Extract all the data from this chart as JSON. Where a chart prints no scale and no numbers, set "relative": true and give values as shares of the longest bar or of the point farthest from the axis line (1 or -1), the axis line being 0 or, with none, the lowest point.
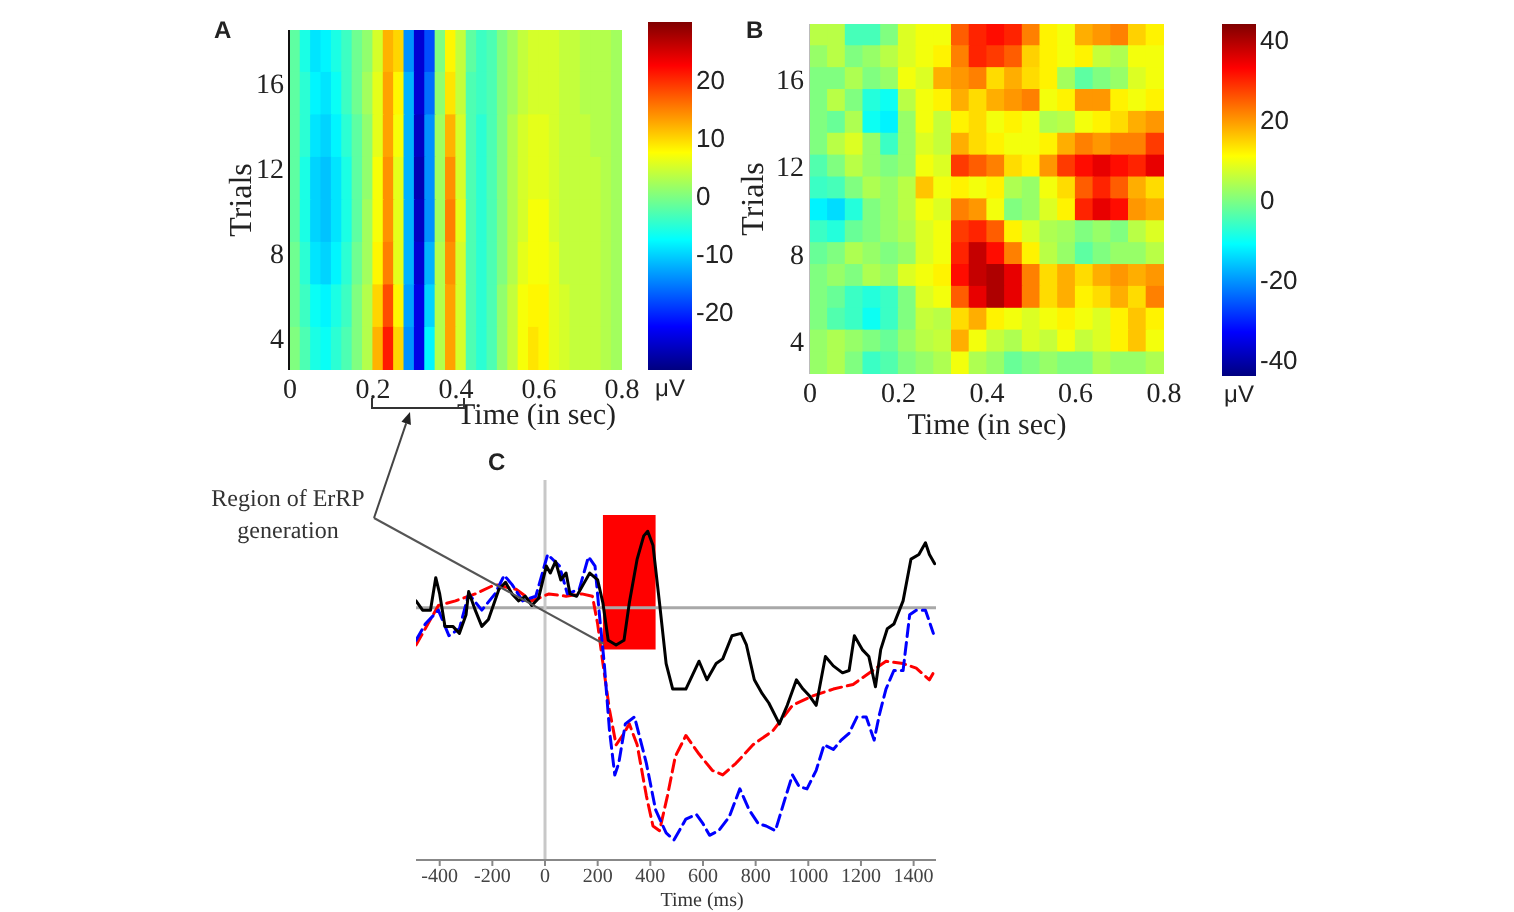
{
  "chart_data": [
    {
      "type": "heatmap",
      "title": "A",
      "xlabel": "Time (in sec)",
      "ylabel": "Trials",
      "clabel": "μV",
      "x": [
        0.0125,
        0.0375,
        0.0625,
        0.0875,
        0.1125,
        0.1375,
        0.1625,
        0.1875,
        0.2125,
        0.2375,
        0.2625,
        0.2875,
        0.3125,
        0.3375,
        0.3625,
        0.3875,
        0.4125,
        0.4375,
        0.4625,
        0.4875,
        0.5125,
        0.5375,
        0.5625,
        0.5875,
        0.6125,
        0.6375,
        0.6625,
        0.6875,
        0.7125,
        0.7375,
        0.7625,
        0.7875
      ],
      "cells": [
        [
          -2,
          -6,
          -9,
          -8,
          -6,
          -4,
          -1,
          1,
          5,
          12,
          10,
          -14,
          -25,
          -18,
          0,
          8,
          4,
          -2,
          -4,
          -3,
          0,
          2,
          4,
          5,
          5,
          5,
          4,
          4,
          3,
          3,
          3,
          2
        ],
        [
          -2,
          -5,
          -8,
          -9,
          -7,
          -4,
          -1,
          2,
          6,
          13,
          8,
          -12,
          -25,
          -16,
          1,
          9,
          4,
          -3,
          -4,
          -3,
          0,
          2,
          4,
          5,
          5,
          5,
          4,
          4,
          3,
          3,
          3,
          2
        ],
        [
          -2,
          -5,
          -9,
          -10,
          -8,
          -5,
          -2,
          1,
          6,
          13,
          7,
          -12,
          -26,
          -14,
          2,
          12,
          5,
          -3,
          -5,
          -3,
          0,
          3,
          5,
          6,
          6,
          5,
          4,
          4,
          4,
          3,
          3,
          2
        ],
        [
          -2,
          -6,
          -10,
          -11,
          -9,
          -6,
          -2,
          1,
          7,
          14,
          6,
          -12,
          -27,
          -14,
          2,
          14,
          5,
          -3,
          -5,
          -3,
          0,
          3,
          5,
          6,
          6,
          5,
          4,
          4,
          4,
          4,
          3,
          2
        ],
        [
          -2,
          -6,
          -10,
          -11,
          -9,
          -6,
          -2,
          2,
          7,
          14,
          6,
          -12,
          -26,
          -14,
          2,
          15,
          6,
          -3,
          -5,
          -3,
          0,
          3,
          5,
          7,
          7,
          5,
          4,
          4,
          4,
          4,
          3,
          2
        ],
        [
          -1,
          -5,
          -9,
          -10,
          -8,
          -5,
          -1,
          2,
          8,
          15,
          6,
          -12,
          -25,
          -12,
          3,
          14,
          5,
          -3,
          -5,
          -3,
          0,
          3,
          6,
          7,
          7,
          6,
          4,
          4,
          4,
          4,
          3,
          2
        ],
        [
          -1,
          -4,
          -7,
          -8,
          -6,
          -4,
          0,
          3,
          10,
          18,
          8,
          -13,
          -24,
          -10,
          3,
          13,
          5,
          -3,
          -5,
          -3,
          1,
          4,
          7,
          8,
          8,
          6,
          5,
          4,
          4,
          4,
          3,
          2
        ],
        [
          0,
          -3,
          -6,
          -7,
          -5,
          -3,
          0,
          3,
          12,
          21,
          10,
          -14,
          -24,
          -8,
          3,
          13,
          5,
          -3,
          -5,
          -3,
          1,
          4,
          7,
          9,
          8,
          6,
          5,
          4,
          4,
          4,
          3,
          2
        ]
      ],
      "xlim": [
        0,
        0.8
      ],
      "xticks": [
        0,
        0.2,
        0.4,
        0.6,
        0.8
      ],
      "ylim": [
        2.5,
        18.5
      ],
      "yticks": [
        4,
        8,
        12,
        16
      ],
      "clim": [
        -30,
        30
      ],
      "cticks": [
        -20,
        -10,
        0,
        10,
        20
      ]
    },
    {
      "type": "heatmap",
      "title": "B",
      "xlabel": "Time (in sec)",
      "ylabel": "Trials",
      "clabel": "μV",
      "x": [
        0.02,
        0.06,
        0.1,
        0.14,
        0.18,
        0.22,
        0.26,
        0.3,
        0.34,
        0.38,
        0.42,
        0.46,
        0.5,
        0.54,
        0.58,
        0.62,
        0.66,
        0.7,
        0.74,
        0.78
      ],
      "cells": [
        [
          5,
          5,
          -5,
          -5,
          0,
          8,
          10,
          10,
          25,
          30,
          32,
          30,
          22,
          12,
          10,
          18,
          20,
          22,
          15,
          12
        ],
        [
          2,
          5,
          0,
          2,
          5,
          8,
          10,
          12,
          22,
          30,
          28,
          25,
          15,
          12,
          10,
          12,
          6,
          4,
          10,
          10
        ],
        [
          0,
          0,
          4,
          0,
          2,
          10,
          8,
          18,
          20,
          22,
          14,
          18,
          14,
          12,
          3,
          -3,
          0,
          2,
          8,
          10
        ],
        [
          0,
          5,
          0,
          -8,
          -10,
          5,
          10,
          12,
          18,
          14,
          18,
          20,
          22,
          10,
          12,
          20,
          20,
          12,
          10,
          12
        ],
        [
          0,
          -2,
          4,
          -10,
          -12,
          2,
          10,
          6,
          12,
          14,
          10,
          12,
          10,
          4,
          5,
          10,
          12,
          14,
          18,
          20
        ],
        [
          0,
          5,
          8,
          2,
          -6,
          2,
          8,
          6,
          18,
          14,
          12,
          10,
          10,
          12,
          18,
          22,
          20,
          22,
          22,
          28
        ],
        [
          -4,
          0,
          5,
          2,
          0,
          2,
          10,
          8,
          28,
          25,
          22,
          14,
          12,
          20,
          28,
          32,
          35,
          32,
          30,
          35
        ],
        [
          -6,
          -5,
          0,
          4,
          2,
          5,
          16,
          10,
          12,
          10,
          12,
          4,
          2,
          10,
          14,
          25,
          30,
          25,
          18,
          14
        ],
        [
          -12,
          -14,
          -8,
          0,
          2,
          5,
          10,
          8,
          22,
          20,
          10,
          0,
          2,
          8,
          12,
          30,
          35,
          32,
          20,
          18
        ],
        [
          -6,
          -8,
          -2,
          0,
          2,
          4,
          8,
          10,
          28,
          30,
          25,
          12,
          8,
          4,
          3,
          0,
          2,
          0,
          5,
          8
        ],
        [
          -2,
          0,
          4,
          2,
          0,
          2,
          8,
          10,
          30,
          38,
          32,
          22,
          12,
          5,
          2,
          -3,
          0,
          2,
          2,
          5
        ],
        [
          0,
          2,
          0,
          4,
          2,
          8,
          10,
          12,
          32,
          38,
          40,
          35,
          22,
          14,
          18,
          14,
          18,
          20,
          18,
          20
        ],
        [
          0,
          -2,
          -6,
          -8,
          -6,
          0,
          8,
          10,
          25,
          35,
          40,
          35,
          22,
          14,
          18,
          12,
          14,
          18,
          14,
          22
        ],
        [
          0,
          -4,
          -6,
          -10,
          -6,
          0,
          6,
          5,
          14,
          18,
          12,
          10,
          8,
          10,
          12,
          10,
          8,
          12,
          16,
          12
        ],
        [
          2,
          4,
          2,
          0,
          -2,
          2,
          5,
          6,
          18,
          10,
          6,
          4,
          8,
          6,
          10,
          6,
          8,
          12,
          16,
          10
        ],
        [
          2,
          4,
          0,
          -6,
          -4,
          0,
          2,
          4,
          10,
          4,
          2,
          -2,
          0,
          2,
          0,
          0,
          4,
          2,
          2,
          4
        ]
      ],
      "xlim": [
        0,
        0.8
      ],
      "xticks": [
        0,
        0.2,
        0.4,
        0.6,
        0.8
      ],
      "ylim": [
        2.5,
        18.5
      ],
      "yticks": [
        4,
        8,
        12,
        16
      ],
      "clim": [
        -44,
        44
      ],
      "cticks": [
        -40,
        -20,
        0,
        20,
        40
      ]
    },
    {
      "type": "line",
      "title": "C",
      "xlabel": "Time (ms)",
      "relative": true,
      "xlim": [
        -490,
        1485
      ],
      "xticks": [
        -400,
        -200,
        0,
        200,
        400,
        600,
        800,
        1000,
        1200,
        1400
      ],
      "series": [
        {
          "color": "#ff0000",
          "line_style": "dashed",
          "x": [
            -490,
            -455,
            -405,
            -340,
            -265,
            -190,
            -110,
            -50,
            15,
            80,
            140,
            180,
            200,
            220,
            245,
            270,
            295,
            320,
            350,
            385,
            410,
            435,
            465,
            495,
            535,
            585,
            635,
            675,
            725,
            790,
            865,
            940,
            1015,
            1095,
            1170,
            1245,
            1295,
            1360,
            1410,
            1460,
            1480
          ],
          "values": [
            -0.16,
            -0.09,
            0.01,
            0.03,
            0.06,
            0.1,
            0.08,
            0.03,
            0.06,
            0.05,
            0.06,
            0.05,
            -0.07,
            -0.24,
            -0.44,
            -0.59,
            -0.55,
            -0.5,
            -0.59,
            -0.81,
            -0.94,
            -0.96,
            -0.81,
            -0.64,
            -0.55,
            -0.63,
            -0.7,
            -0.72,
            -0.67,
            -0.59,
            -0.53,
            -0.42,
            -0.38,
            -0.35,
            -0.33,
            -0.27,
            -0.23,
            -0.24,
            -0.26,
            -0.31,
            -0.27
          ]
        },
        {
          "color": "#0000ff",
          "line_style": "dashed",
          "x": [
            -490,
            -455,
            -405,
            -365,
            -325,
            -290,
            -240,
            -190,
            -155,
            -125,
            -85,
            -35,
            10,
            55,
            85,
            130,
            165,
            190,
            205,
            225,
            245,
            265,
            280,
            305,
            340,
            385,
            420,
            460,
            490,
            535,
            575,
            600,
            625,
            660,
            700,
            740,
            775,
            810,
            840,
            875,
            915,
            940,
            965,
            995,
            1030,
            1060,
            1095,
            1125,
            1155,
            1185,
            1220,
            1250,
            1270,
            1295,
            1325,
            1360,
            1385,
            1410,
            1445,
            1475
          ],
          "values": [
            -0.14,
            -0.07,
            -0.01,
            -0.12,
            -0.09,
            0.06,
            -0.01,
            0.06,
            0.14,
            0.1,
            0.03,
            0.05,
            0.23,
            0.18,
            0.06,
            0.08,
            0.22,
            0.18,
            -0.01,
            -0.24,
            -0.53,
            -0.72,
            -0.67,
            -0.5,
            -0.47,
            -0.67,
            -0.87,
            -0.97,
            -1,
            -0.91,
            -0.89,
            -0.93,
            -0.98,
            -0.96,
            -0.9,
            -0.78,
            -0.87,
            -0.93,
            -0.94,
            -0.96,
            -0.81,
            -0.72,
            -0.77,
            -0.78,
            -0.7,
            -0.59,
            -0.61,
            -0.57,
            -0.54,
            -0.47,
            -0.47,
            -0.57,
            -0.46,
            -0.35,
            -0.27,
            -0.27,
            -0.03,
            -0.01,
            -0.01,
            -0.11
          ]
        },
        {
          "color": "#000000",
          "line_style": "solid",
          "x": [
            -490,
            -465,
            -435,
            -415,
            -400,
            -380,
            -350,
            -325,
            -300,
            -290,
            -265,
            -240,
            -215,
            -175,
            -150,
            -125,
            -100,
            -75,
            -50,
            -25,
            5,
            20,
            40,
            60,
            80,
            95,
            120,
            145,
            170,
            200,
            220,
            240,
            270,
            300,
            320,
            350,
            375,
            390,
            410,
            435,
            460,
            485,
            535,
            560,
            585,
            615,
            650,
            675,
            710,
            745,
            765,
            795,
            825,
            850,
            890,
            920,
            955,
            980,
            1005,
            1030,
            1065,
            1095,
            1130,
            1155,
            1175,
            1205,
            1230,
            1255,
            1275,
            1300,
            1325,
            1360,
            1390,
            1420,
            1445,
            1460,
            1480
          ],
          "values": [
            0.03,
            -0.01,
            -0.01,
            0.13,
            0.06,
            -0.08,
            -0.08,
            -0.11,
            -0.03,
            0.07,
            -0.01,
            -0.08,
            -0.05,
            0.08,
            0.11,
            0.06,
            0.03,
            0.05,
            0.01,
            0.04,
            0.18,
            0.15,
            0.2,
            0.12,
            0.15,
            0.06,
            0.05,
            0.1,
            0.15,
            0.12,
            0.02,
            -0.14,
            -0.16,
            -0.14,
            0.02,
            0.21,
            0.31,
            0.33,
            0.27,
            0.02,
            -0.24,
            -0.35,
            -0.35,
            -0.29,
            -0.23,
            -0.31,
            -0.24,
            -0.22,
            -0.12,
            -0.11,
            -0.16,
            -0.31,
            -0.37,
            -0.41,
            -0.5,
            -0.42,
            -0.31,
            -0.35,
            -0.38,
            -0.42,
            -0.21,
            -0.25,
            -0.28,
            -0.27,
            -0.12,
            -0.18,
            -0.21,
            -0.34,
            -0.18,
            -0.09,
            -0.07,
            0.03,
            0.21,
            0.23,
            0.28,
            0.23,
            0.19
          ]
        }
      ],
      "ref_lines": [
        {
          "axis": "y",
          "value": 0,
          "color": "#a8a8a8"
        },
        {
          "axis": "x",
          "value": 0,
          "color": "#c8c8c8"
        }
      ],
      "bands": [
        {
          "axis": "x",
          "from": 220,
          "to": 420,
          "color": "#ff0000"
        }
      ],
      "annotations": [
        "Region of ErRP generation"
      ]
    }
  ]
}
